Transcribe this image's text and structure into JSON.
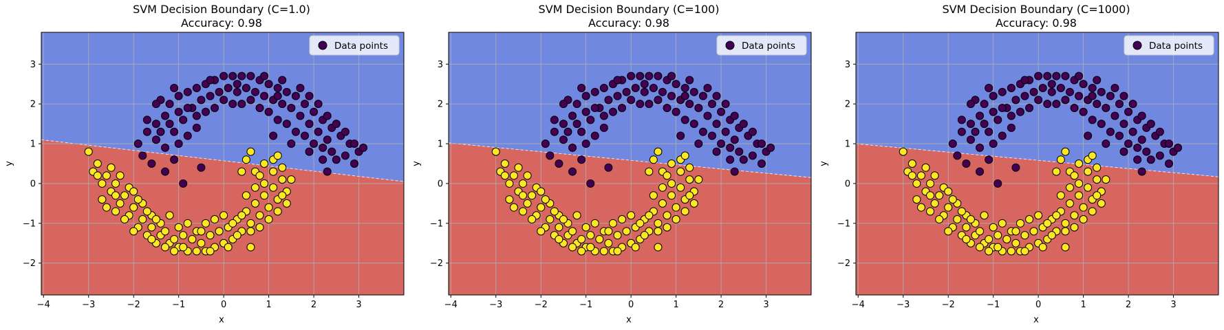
{
  "chart_data": [
    {
      "type": "scatter",
      "title": "SVM Decision Boundary (C=1.0)",
      "subtitle": "Accuracy: 0.98",
      "xlabel": "x",
      "ylabel": "y",
      "xlim": [
        -4.05,
        4.0
      ],
      "ylim": [
        -2.8,
        3.8
      ],
      "xticks": [
        -4,
        -3,
        -2,
        -1,
        0,
        1,
        2,
        3
      ],
      "yticks": [
        -2,
        -1,
        0,
        1,
        2,
        3
      ],
      "grid": true,
      "legend": {
        "position": "top-right",
        "entries": [
          "Data points"
        ]
      },
      "decision_boundary": {
        "x": [
          -4.05,
          4.0
        ],
        "y": [
          1.1,
          0.05
        ]
      },
      "regions": {
        "upper_color": "#7088e0",
        "lower_color": "#d6665f"
      }
    },
    {
      "type": "scatter",
      "title": "SVM Decision Boundary (C=100)",
      "subtitle": "Accuracy: 0.98",
      "xlabel": "x",
      "ylabel": "y",
      "xlim": [
        -4.05,
        4.0
      ],
      "ylim": [
        -2.8,
        3.8
      ],
      "xticks": [
        -4,
        -3,
        -2,
        -1,
        0,
        1,
        2,
        3
      ],
      "yticks": [
        -2,
        -1,
        0,
        1,
        2,
        3
      ],
      "grid": true,
      "legend": {
        "position": "top-right",
        "entries": [
          "Data points"
        ]
      },
      "decision_boundary": {
        "x": [
          -4.05,
          4.0
        ],
        "y": [
          1.02,
          0.15
        ]
      },
      "regions": {
        "upper_color": "#7088e0",
        "lower_color": "#d6665f"
      }
    },
    {
      "type": "scatter",
      "title": "SVM Decision Boundary (C=1000)",
      "subtitle": "Accuracy: 0.98",
      "xlabel": "x",
      "ylabel": "y",
      "xlim": [
        -4.05,
        4.0
      ],
      "ylim": [
        -2.8,
        3.8
      ],
      "xticks": [
        -4,
        -3,
        -2,
        -1,
        0,
        1,
        2,
        3
      ],
      "yticks": [
        -2,
        -1,
        0,
        1,
        2,
        3
      ],
      "grid": true,
      "legend": {
        "position": "top-right",
        "entries": [
          "Data points"
        ]
      },
      "decision_boundary": {
        "x": [
          -4.05,
          4.0
        ],
        "y": [
          1.0,
          0.17
        ]
      },
      "regions": {
        "upper_color": "#7088e0",
        "lower_color": "#d6665f"
      }
    }
  ],
  "points": {
    "class0_color": "#440154",
    "class1_color": "#fde725",
    "edge_color": "#000000",
    "class0": [
      [
        -1.8,
        0.7
      ],
      [
        -1.9,
        1.0
      ],
      [
        -1.7,
        1.3
      ],
      [
        -1.5,
        1.5
      ],
      [
        -1.3,
        1.7
      ],
      [
        -1.2,
        2.0
      ],
      [
        -1.0,
        2.2
      ],
      [
        -0.8,
        2.3
      ],
      [
        -0.6,
        2.4
      ],
      [
        -0.4,
        2.5
      ],
      [
        -0.2,
        2.6
      ],
      [
        0.0,
        2.7
      ],
      [
        0.2,
        2.7
      ],
      [
        0.4,
        2.7
      ],
      [
        0.6,
        2.7
      ],
      [
        0.8,
        2.6
      ],
      [
        1.0,
        2.5
      ],
      [
        1.2,
        2.4
      ],
      [
        1.4,
        2.3
      ],
      [
        1.6,
        2.2
      ],
      [
        1.8,
        2.0
      ],
      [
        2.0,
        1.8
      ],
      [
        2.2,
        1.6
      ],
      [
        2.4,
        1.4
      ],
      [
        2.6,
        1.2
      ],
      [
        2.8,
        1.0
      ],
      [
        3.0,
        0.8
      ],
      [
        2.9,
        0.5
      ],
      [
        2.5,
        0.6
      ],
      [
        2.3,
        0.3
      ],
      [
        -1.5,
        1.1
      ],
      [
        -1.3,
        0.9
      ],
      [
        -1.1,
        1.3
      ],
      [
        -0.9,
        1.6
      ],
      [
        -0.7,
        1.9
      ],
      [
        -0.5,
        2.1
      ],
      [
        -0.3,
        2.2
      ],
      [
        -0.1,
        2.3
      ],
      [
        0.1,
        2.4
      ],
      [
        0.3,
        2.3
      ],
      [
        0.5,
        2.4
      ],
      [
        0.7,
        2.3
      ],
      [
        0.9,
        2.2
      ],
      [
        1.1,
        2.1
      ],
      [
        1.3,
        2.0
      ],
      [
        1.5,
        1.9
      ],
      [
        1.7,
        1.7
      ],
      [
        1.9,
        1.5
      ],
      [
        2.1,
        1.3
      ],
      [
        2.3,
        1.1
      ],
      [
        -1.4,
        2.1
      ],
      [
        -1.2,
        1.5
      ],
      [
        -1.0,
        1.8
      ],
      [
        -0.8,
        1.9
      ],
      [
        -0.6,
        1.7
      ],
      [
        -0.4,
        1.8
      ],
      [
        -0.2,
        1.9
      ],
      [
        0.2,
        2.0
      ],
      [
        0.4,
        2.0
      ],
      [
        0.6,
        2.1
      ],
      [
        0.8,
        1.9
      ],
      [
        1.0,
        1.8
      ],
      [
        1.2,
        1.6
      ],
      [
        1.4,
        1.5
      ],
      [
        1.6,
        1.3
      ],
      [
        1.8,
        1.2
      ],
      [
        2.0,
        1.0
      ],
      [
        2.2,
        0.9
      ],
      [
        2.4,
        0.8
      ],
      [
        2.7,
        0.7
      ],
      [
        -1.6,
        0.5
      ],
      [
        -1.3,
        0.3
      ],
      [
        -0.9,
        0.0
      ],
      [
        -0.5,
        0.4
      ],
      [
        -1.1,
        0.6
      ],
      [
        -1.7,
        1.6
      ],
      [
        -1.5,
        2.0
      ],
      [
        -1.1,
        2.4
      ],
      [
        -0.3,
        2.6
      ],
      [
        0.3,
        2.5
      ],
      [
        0.9,
        2.7
      ],
      [
        1.3,
        2.6
      ],
      [
        1.7,
        2.4
      ],
      [
        1.9,
        2.2
      ],
      [
        2.1,
        2.0
      ],
      [
        2.3,
        1.7
      ],
      [
        2.5,
        1.5
      ],
      [
        2.7,
        1.3
      ],
      [
        2.9,
        1.0
      ],
      [
        3.1,
        0.9
      ],
      [
        -1.0,
        1.0
      ],
      [
        -0.8,
        1.2
      ],
      [
        -0.6,
        1.4
      ],
      [
        1.1,
        1.2
      ],
      [
        1.5,
        1.0
      ],
      [
        1.9,
        0.8
      ],
      [
        2.2,
        0.6
      ],
      [
        -1.4,
        1.3
      ],
      [
        0.0,
        2.1
      ],
      [
        1.2,
        2.2
      ]
    ],
    "class1": [
      [
        -3.0,
        0.8
      ],
      [
        -2.8,
        0.5
      ],
      [
        -2.6,
        0.2
      ],
      [
        -2.4,
        0.0
      ],
      [
        -2.2,
        -0.3
      ],
      [
        -2.0,
        -0.6
      ],
      [
        -1.8,
        -0.9
      ],
      [
        -1.6,
        -1.1
      ],
      [
        -1.4,
        -1.3
      ],
      [
        -1.2,
        -1.5
      ],
      [
        -1.0,
        -1.6
      ],
      [
        -0.8,
        -1.7
      ],
      [
        -0.6,
        -1.7
      ],
      [
        -0.4,
        -1.7
      ],
      [
        -0.2,
        -1.6
      ],
      [
        0.0,
        -1.5
      ],
      [
        0.2,
        -1.4
      ],
      [
        0.4,
        -1.2
      ],
      [
        0.6,
        -1.0
      ],
      [
        0.8,
        -0.8
      ],
      [
        1.0,
        -0.6
      ],
      [
        1.2,
        -0.4
      ],
      [
        1.4,
        -0.2
      ],
      [
        1.5,
        0.1
      ],
      [
        1.3,
        0.4
      ],
      [
        1.1,
        0.6
      ],
      [
        0.9,
        0.5
      ],
      [
        0.7,
        0.3
      ],
      [
        0.5,
        0.6
      ],
      [
        0.6,
        0.8
      ],
      [
        -2.9,
        0.3
      ],
      [
        -2.7,
        0.0
      ],
      [
        -2.5,
        -0.2
      ],
      [
        -2.3,
        -0.5
      ],
      [
        -2.1,
        -0.8
      ],
      [
        -1.9,
        -1.1
      ],
      [
        -1.7,
        -1.3
      ],
      [
        -1.5,
        -1.5
      ],
      [
        -1.3,
        -1.6
      ],
      [
        -1.1,
        -1.4
      ],
      [
        -0.9,
        -1.3
      ],
      [
        -0.7,
        -1.4
      ],
      [
        -0.5,
        -1.5
      ],
      [
        -0.3,
        -1.3
      ],
      [
        -0.1,
        -1.2
      ],
      [
        0.1,
        -1.1
      ],
      [
        0.3,
        -0.9
      ],
      [
        0.5,
        -0.7
      ],
      [
        0.7,
        -0.5
      ],
      [
        0.9,
        -0.3
      ],
      [
        1.1,
        -0.1
      ],
      [
        1.3,
        0.1
      ],
      [
        -2.6,
        -0.6
      ],
      [
        -2.4,
        -0.3
      ],
      [
        -2.2,
        -0.9
      ],
      [
        -2.0,
        -1.2
      ],
      [
        -1.8,
        -0.5
      ],
      [
        -1.6,
        -0.8
      ],
      [
        -1.4,
        -1.0
      ],
      [
        -1.2,
        -0.8
      ],
      [
        -1.0,
        -1.1
      ],
      [
        -0.8,
        -1.0
      ],
      [
        -0.6,
        -1.2
      ],
      [
        -0.4,
        -1.0
      ],
      [
        -0.2,
        -0.9
      ],
      [
        0.0,
        -0.8
      ],
      [
        0.2,
        -1.0
      ],
      [
        0.4,
        -0.8
      ],
      [
        0.6,
        -1.2
      ],
      [
        0.8,
        -1.1
      ],
      [
        1.0,
        -0.9
      ],
      [
        1.2,
        -0.7
      ],
      [
        1.4,
        -0.5
      ],
      [
        0.9,
        0.0
      ],
      [
        0.7,
        -0.1
      ],
      [
        0.5,
        -0.3
      ],
      [
        -2.8,
        0.2
      ],
      [
        -2.5,
        0.4
      ],
      [
        -2.3,
        0.2
      ],
      [
        -2.1,
        -0.1
      ],
      [
        -1.9,
        -0.4
      ],
      [
        -1.7,
        -0.7
      ],
      [
        -1.5,
        -0.9
      ],
      [
        -1.3,
        -1.2
      ],
      [
        -1.1,
        -1.7
      ],
      [
        -0.9,
        -1.6
      ],
      [
        -0.5,
        -1.2
      ],
      [
        0.3,
        -1.3
      ],
      [
        0.6,
        -1.6
      ],
      [
        1.1,
        0.3
      ],
      [
        1.3,
        -0.3
      ],
      [
        1.2,
        0.7
      ],
      [
        -2.7,
        -0.4
      ],
      [
        -2.4,
        -0.7
      ],
      [
        -2.0,
        -0.2
      ],
      [
        -1.6,
        -1.4
      ],
      [
        -0.3,
        -1.7
      ],
      [
        0.1,
        -1.6
      ],
      [
        0.8,
        0.2
      ],
      [
        0.4,
        0.3
      ]
    ]
  }
}
